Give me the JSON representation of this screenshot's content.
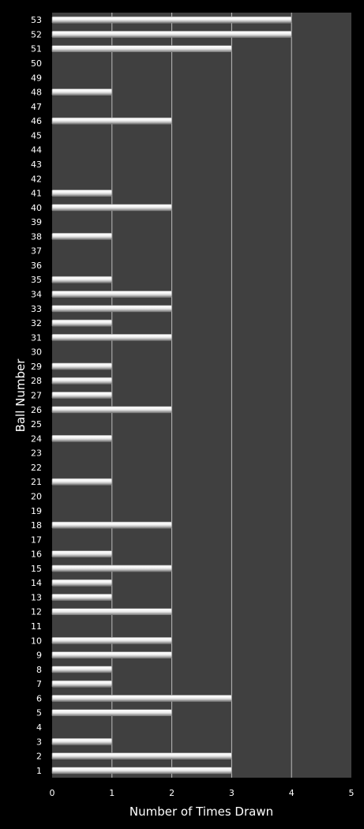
{
  "chart_data": {
    "type": "bar",
    "orientation": "horizontal",
    "title": "",
    "xlabel": "Number of Times Drawn",
    "ylabel": "Ball Number",
    "xlim": [
      0,
      5
    ],
    "x_ticks": [
      "0",
      "1",
      "2",
      "3",
      "4",
      "5"
    ],
    "grid": true,
    "legend": "none",
    "categories": [
      "1",
      "2",
      "3",
      "4",
      "5",
      "6",
      "7",
      "8",
      "9",
      "10",
      "11",
      "12",
      "13",
      "14",
      "15",
      "16",
      "17",
      "18",
      "19",
      "20",
      "21",
      "22",
      "23",
      "24",
      "25",
      "26",
      "27",
      "28",
      "29",
      "30",
      "31",
      "32",
      "33",
      "34",
      "35",
      "36",
      "37",
      "38",
      "39",
      "40",
      "41",
      "42",
      "43",
      "44",
      "45",
      "46",
      "47",
      "48",
      "49",
      "50",
      "51",
      "52",
      "53"
    ],
    "values": [
      3,
      3,
      1,
      0,
      2,
      3,
      1,
      1,
      2,
      2,
      0,
      2,
      1,
      1,
      2,
      1,
      0,
      2,
      0,
      0,
      1,
      0,
      0,
      1,
      0,
      2,
      1,
      1,
      1,
      0,
      2,
      1,
      2,
      2,
      1,
      0,
      0,
      1,
      0,
      2,
      1,
      0,
      0,
      0,
      0,
      2,
      0,
      1,
      0,
      0,
      3,
      4,
      4
    ],
    "colors": {
      "background": "#000000",
      "plot_area": "#404040",
      "bar": "#e8e8e8",
      "grid": "#bdbdbd",
      "text": "#ffffff"
    }
  }
}
